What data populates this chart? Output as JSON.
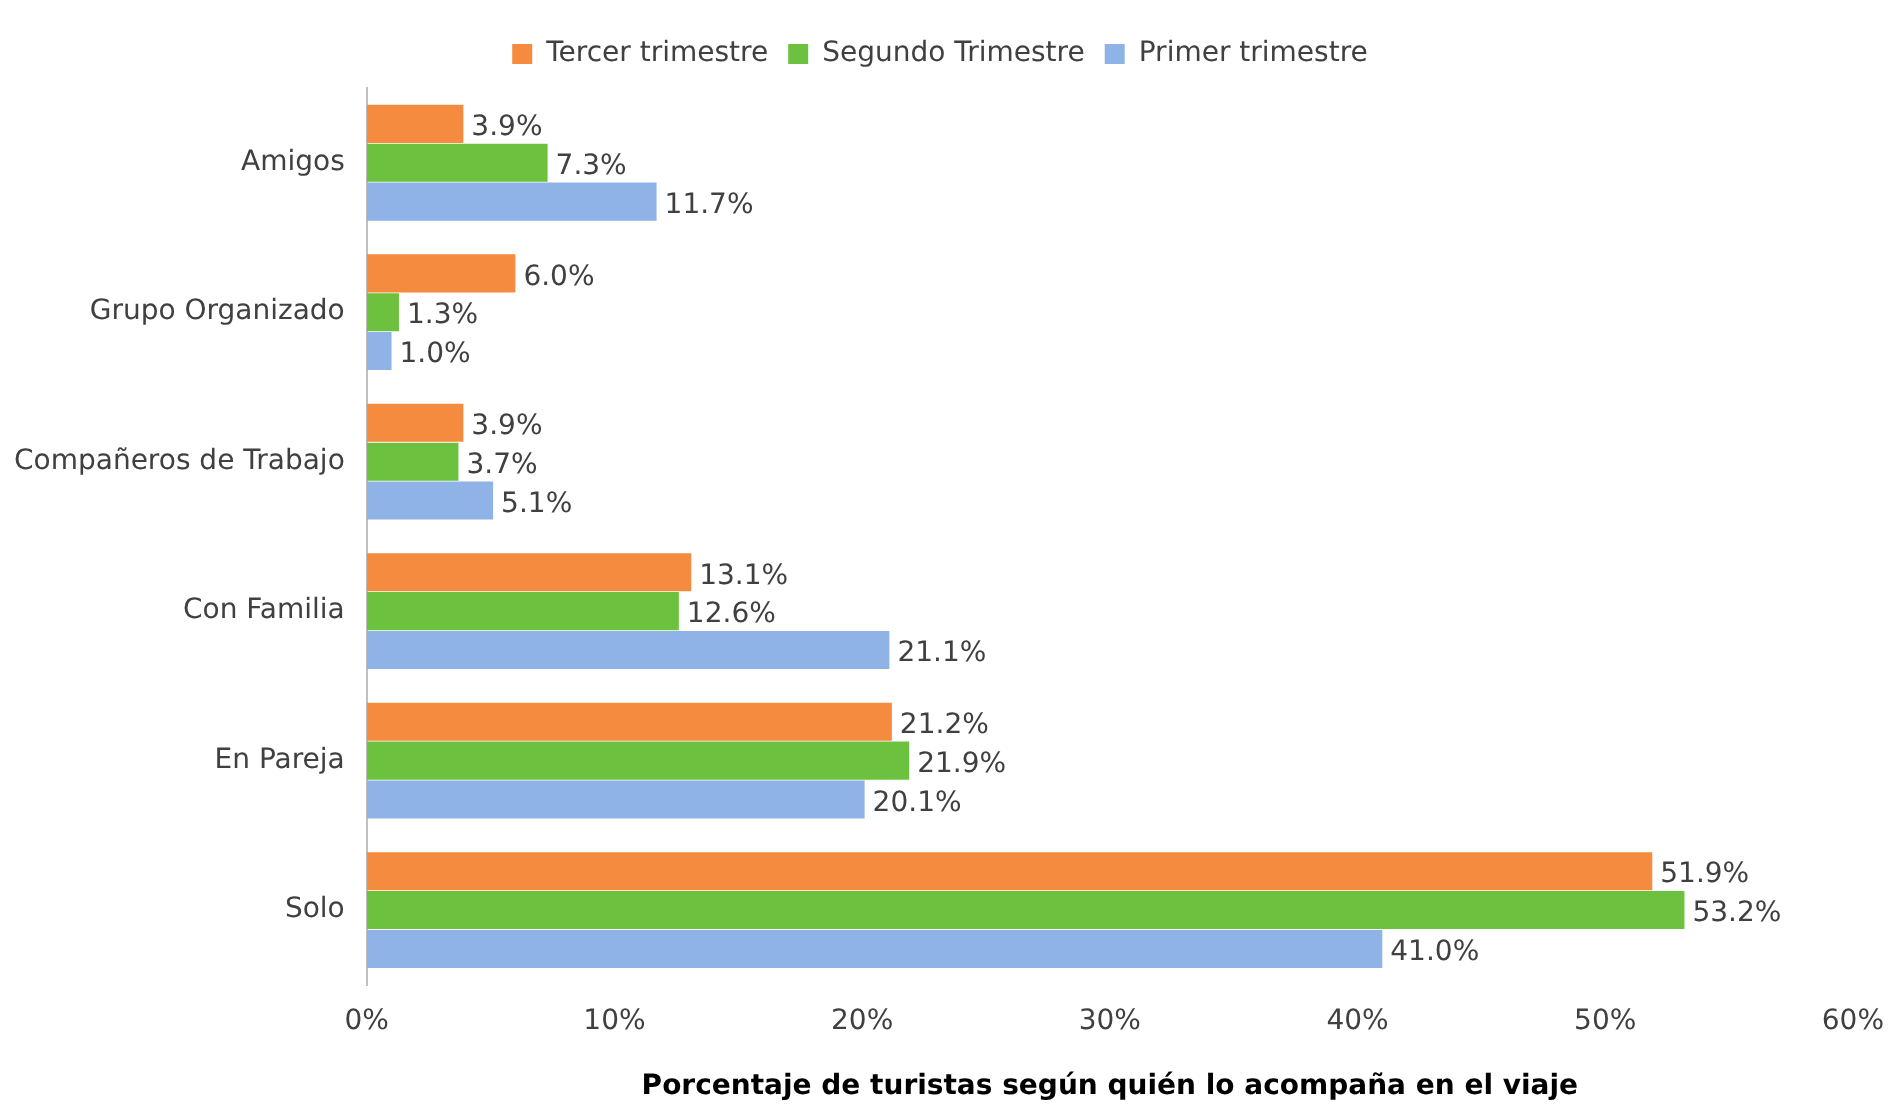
{
  "chart_data": {
    "type": "bar",
    "orientation": "horizontal",
    "xlabel": "Porcentaje de turistas según quién lo acompaña en el viaje",
    "categories": [
      "Amigos",
      "Grupo Organizado",
      "Compañeros de Trabajo",
      "Con Familia",
      "En Pareja",
      "Solo"
    ],
    "series": [
      {
        "name": "Tercer trimestre",
        "color": "#f58b3f",
        "values": [
          3.9,
          6.0,
          3.9,
          13.1,
          21.2,
          51.9
        ],
        "value_labels": [
          "3.9%",
          "6.0%",
          "3.9%",
          "13.1%",
          "21.2%",
          "51.9%"
        ]
      },
      {
        "name": "Segundo Trimestre",
        "color": "#6cc23f",
        "values": [
          7.3,
          1.3,
          3.7,
          12.6,
          21.9,
          53.2
        ],
        "value_labels": [
          "7.3%",
          "1.3%",
          "3.7%",
          "12.6%",
          "21.9%",
          "53.2%"
        ]
      },
      {
        "name": "Primer trimestre",
        "color": "#8fb3e6",
        "values": [
          11.7,
          1.0,
          5.1,
          21.1,
          20.1,
          41.0
        ],
        "value_labels": [
          "11.7%",
          "1.0%",
          "5.1%",
          "21.1%",
          "20.1%",
          "41.0%"
        ]
      }
    ],
    "xlim": [
      0,
      60
    ],
    "xticks": [
      {
        "value": 0,
        "label": "0%"
      },
      {
        "value": 10,
        "label": "10%"
      },
      {
        "value": 20,
        "label": "20%"
      },
      {
        "value": 30,
        "label": "30%"
      },
      {
        "value": 40,
        "label": "40%"
      },
      {
        "value": 50,
        "label": "50%"
      },
      {
        "value": 60,
        "label": "60%"
      }
    ],
    "grid": false,
    "legend": "top"
  }
}
